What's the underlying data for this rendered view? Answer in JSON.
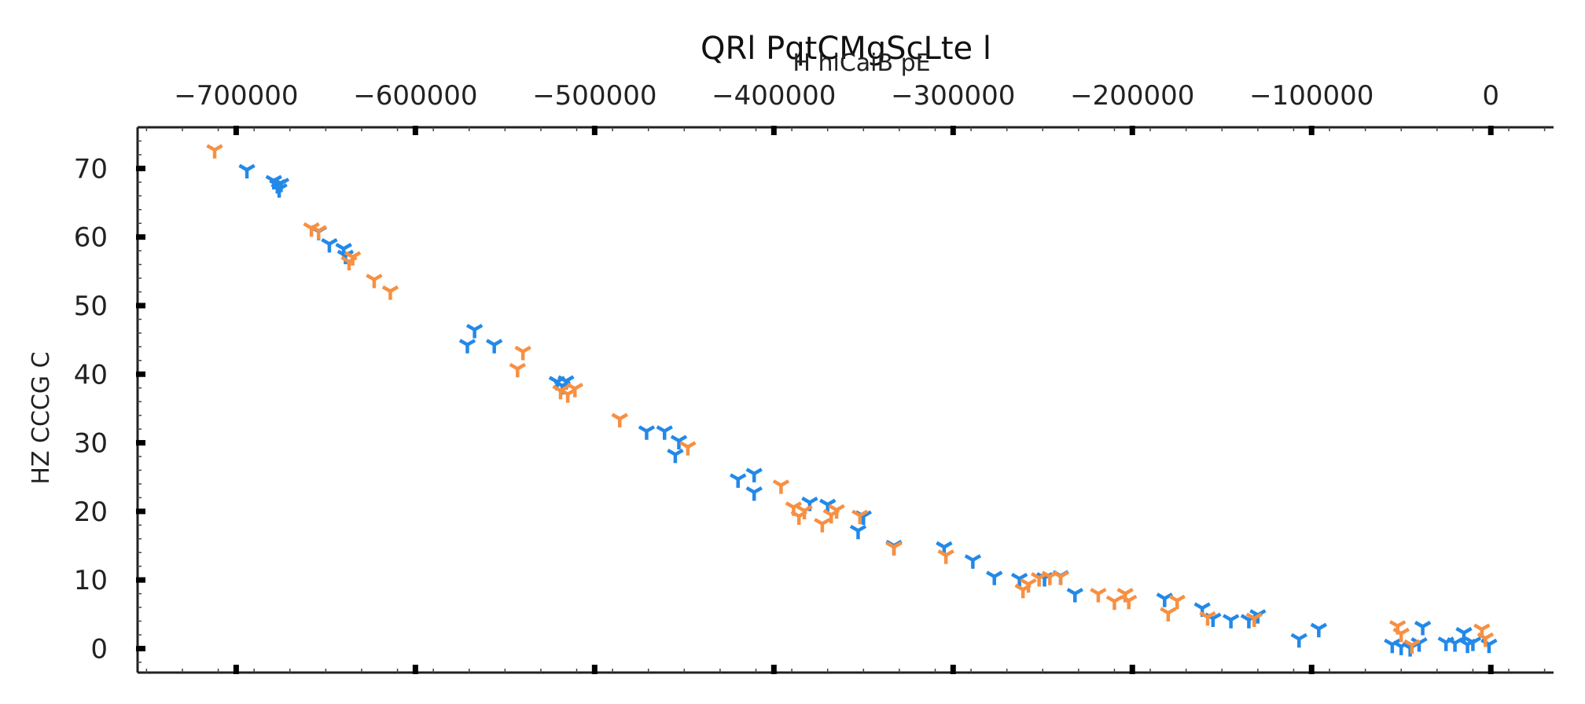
{
  "chart_data": {
    "type": "scatter",
    "title": "QRl PqtCMgScLte  l",
    "xlabel": "H hiCaiB pE",
    "ylabel": "HZ  CCCG C",
    "x_axis_position": "top",
    "xlim": [
      -755000,
      35000
    ],
    "ylim": [
      -3.5,
      76
    ],
    "xticks": [
      -700000,
      -600000,
      -500000,
      -400000,
      -300000,
      -200000,
      -100000,
      0
    ],
    "xtick_labels": [
      "−700000",
      "−600000",
      "−500000",
      "−400000",
      "−300000",
      "−200000",
      "−100000",
      "0"
    ],
    "yticks": [
      0,
      10,
      20,
      30,
      40,
      50,
      60,
      70
    ],
    "ytick_labels": [
      "0",
      "10",
      "20",
      "30",
      "40",
      "50",
      "60",
      "70"
    ],
    "grid": false,
    "marker": "tri_down",
    "series": [
      {
        "color": "#2389e8",
        "points": [
          [
            -694000,
            69.8
          ],
          [
            -679000,
            68.2
          ],
          [
            -677000,
            67.6
          ],
          [
            -676000,
            67.0
          ],
          [
            -675000,
            67.8
          ],
          [
            -654000,
            60.8
          ],
          [
            -648000,
            59.0
          ],
          [
            -640000,
            58.3
          ],
          [
            -639000,
            57.3
          ],
          [
            -571000,
            44.3
          ],
          [
            -567000,
            46.5
          ],
          [
            -556000,
            44.3
          ],
          [
            -521000,
            38.9
          ],
          [
            -518000,
            38.3
          ],
          [
            -516000,
            39.0
          ],
          [
            -471000,
            31.7
          ],
          [
            -461000,
            31.7
          ],
          [
            -453000,
            30.3
          ],
          [
            -455000,
            28.3
          ],
          [
            -420000,
            24.7
          ],
          [
            -411000,
            25.5
          ],
          [
            -411000,
            22.8
          ],
          [
            -380000,
            21.3
          ],
          [
            -370000,
            21.0
          ],
          [
            -353000,
            17.2
          ],
          [
            -350000,
            19.3
          ],
          [
            -333000,
            15.0
          ],
          [
            -305000,
            14.8
          ],
          [
            -289000,
            12.9
          ],
          [
            -277000,
            10.5
          ],
          [
            -263000,
            10.2
          ],
          [
            -249000,
            10.3
          ],
          [
            -240000,
            10.6
          ],
          [
            -232000,
            8.0
          ],
          [
            -182000,
            7.3
          ],
          [
            -161000,
            5.9
          ],
          [
            -155000,
            4.4
          ],
          [
            -145000,
            4.2
          ],
          [
            -135000,
            4.2
          ],
          [
            -130000,
            4.9
          ],
          [
            -107000,
            1.4
          ],
          [
            -96000,
            2.9
          ],
          [
            -55000,
            0.6
          ],
          [
            -50000,
            0.3
          ],
          [
            -45000,
            0.1
          ],
          [
            -40000,
            0.8
          ],
          [
            -38000,
            3.2
          ],
          [
            -25000,
            0.9
          ],
          [
            -20000,
            0.8
          ],
          [
            -15000,
            2.3
          ],
          [
            -13000,
            0.6
          ],
          [
            -10000,
            0.9
          ],
          [
            -1000,
            0.6
          ]
        ]
      },
      {
        "color": "#f79042",
        "points": [
          [
            -712000,
            72.7
          ],
          [
            -658000,
            61.3
          ],
          [
            -654000,
            60.9
          ],
          [
            -637000,
            56.4
          ],
          [
            -635000,
            57.1
          ],
          [
            -623000,
            53.8
          ],
          [
            -614000,
            52.1
          ],
          [
            -543000,
            40.8
          ],
          [
            -540000,
            43.3
          ],
          [
            -519000,
            37.6
          ],
          [
            -515000,
            37.1
          ],
          [
            -511000,
            37.9
          ],
          [
            -486000,
            33.5
          ],
          [
            -448000,
            29.4
          ],
          [
            -396000,
            23.8
          ],
          [
            -389000,
            20.6
          ],
          [
            -386000,
            19.3
          ],
          [
            -383000,
            20.1
          ],
          [
            -373000,
            18.2
          ],
          [
            -368000,
            19.5
          ],
          [
            -365000,
            20.2
          ],
          [
            -352000,
            19.4
          ],
          [
            -333000,
            14.8
          ],
          [
            -304000,
            13.6
          ],
          [
            -261000,
            8.6
          ],
          [
            -258000,
            9.4
          ],
          [
            -252000,
            10.3
          ],
          [
            -246000,
            10.5
          ],
          [
            -240000,
            10.5
          ],
          [
            -219000,
            8.0
          ],
          [
            -210000,
            6.9
          ],
          [
            -204000,
            8.0
          ],
          [
            -202000,
            7.0
          ],
          [
            -180000,
            5.2
          ],
          [
            -175000,
            7.0
          ],
          [
            -158000,
            4.6
          ],
          [
            -132000,
            4.4
          ],
          [
            -52000,
            3.3
          ],
          [
            -50000,
            2.2
          ],
          [
            -44000,
            0.5
          ],
          [
            -5000,
            2.8
          ],
          [
            -3000,
            1.5
          ]
        ]
      }
    ]
  }
}
